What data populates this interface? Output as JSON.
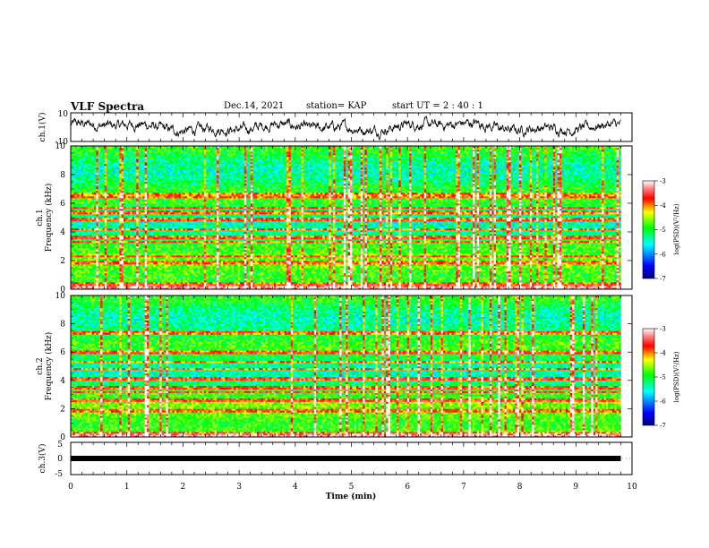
{
  "header": {
    "title": "VLF Spectra",
    "date": "Dec.14, 2021",
    "station": "station= KAP",
    "start": "start  UT =   2 : 40 : 1"
  },
  "chart_data": [
    {
      "type": "line",
      "name": "ch1-waveform",
      "ylabel": "ch.1(V)",
      "ylim": [
        -10,
        10
      ],
      "y_ticks": [
        "10",
        "-10"
      ],
      "xlim": [
        0,
        10
      ],
      "x_end": 9.8,
      "baseline": 0,
      "note_values": "noisy signal fluctuating mostly between -5 and 5 V"
    },
    {
      "type": "heatmap",
      "name": "ch1-spectrogram",
      "ylabel": "Frequency (kHz)",
      "ylabel_prefix": "ch.1",
      "ylim": [
        0,
        10
      ],
      "y_ticks": [
        "0",
        "2",
        "4",
        "6",
        "8",
        "10"
      ],
      "xlim": [
        0,
        10
      ],
      "x_end": 9.8,
      "bands_khz": [
        0.4,
        1.9,
        2.3,
        3.3,
        3.6,
        4.2,
        4.9,
        5.4,
        5.7,
        6.5,
        6.7
      ],
      "colorbar": {
        "label": "log(PSD)(V²/Hz)",
        "ticks": [
          "-3",
          "-4",
          "-5",
          "-6",
          "-7"
        ],
        "range": [
          -7,
          -3
        ]
      }
    },
    {
      "type": "heatmap",
      "name": "ch2-spectrogram",
      "ylabel": "Frequency (kHz)",
      "ylabel_prefix": "ch.2",
      "ylim": [
        0,
        10
      ],
      "y_ticks": [
        "0",
        "2",
        "4",
        "6",
        "8",
        "10"
      ],
      "xlim": [
        0,
        10
      ],
      "x_end": 9.8,
      "bands_khz": [
        0.3,
        1.9,
        2.6,
        3.2,
        3.5,
        4.1,
        4.8,
        5.3,
        6.0,
        7.4
      ],
      "colorbar": {
        "label": "log(PSD)(V²/Hz)",
        "ticks": [
          "-3",
          "-4",
          "-5",
          "-6",
          "-7"
        ],
        "range": [
          -7,
          -3
        ]
      }
    },
    {
      "type": "line",
      "name": "ch3-waveform",
      "ylabel": "ch.3(V)",
      "ylim": [
        -5,
        5
      ],
      "y_ticks": [
        "5",
        "0",
        "-5"
      ],
      "xlim": [
        0,
        10
      ],
      "x_end": 9.8,
      "level": 0,
      "xlabel": "Time (min)",
      "x_ticks": [
        "0",
        "1",
        "2",
        "3",
        "4",
        "5",
        "6",
        "7",
        "8",
        "9",
        "10"
      ]
    }
  ]
}
